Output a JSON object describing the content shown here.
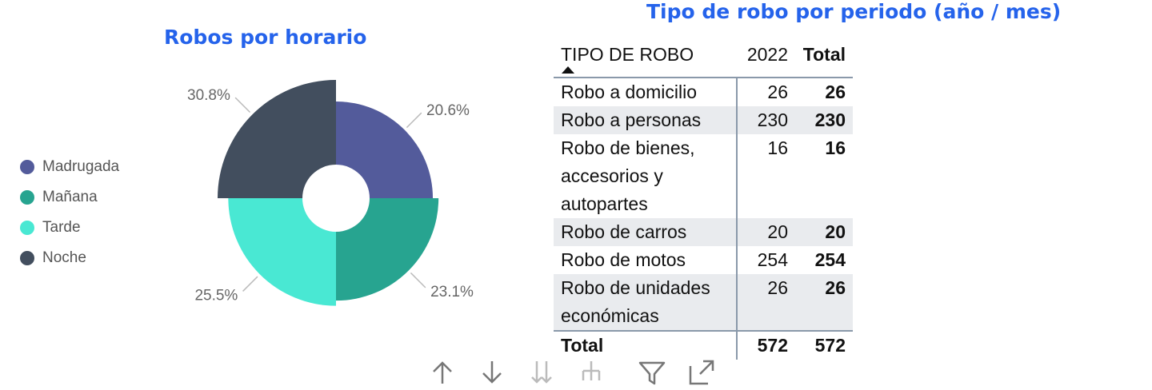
{
  "pie_chart": {
    "title": "Robos por horario"
  },
  "chart_data": [
    {
      "type": "pie",
      "title": "Robos por horario",
      "categories": [
        "Madrugada",
        "Mañana",
        "Tarde",
        "Noche"
      ],
      "values": [
        20.6,
        23.1,
        25.5,
        30.8
      ],
      "labels": [
        "20.6%",
        "23.1%",
        "25.5%",
        "30.8%"
      ],
      "colors": [
        "#535b9b",
        "#27a490",
        "#49e8d3",
        "#424e5e"
      ],
      "legend_position": "left",
      "style": "rose-donut"
    }
  ],
  "table": {
    "title": "Tipo de robo por periodo (año / mes)",
    "headers": {
      "type": "TIPO DE ROBO",
      "year": "2022",
      "total": "Total"
    },
    "rows": [
      {
        "type": "Robo a domicilio",
        "year": "26",
        "total": "26"
      },
      {
        "type": "Robo a personas",
        "year": "230",
        "total": "230"
      },
      {
        "type": "Robo de bienes, accesorios y autopartes",
        "year": "16",
        "total": "16"
      },
      {
        "type": "Robo de carros",
        "year": "20",
        "total": "20"
      },
      {
        "type": "Robo de motos",
        "year": "254",
        "total": "254"
      },
      {
        "type": "Robo de unidades económicas",
        "year": "26",
        "total": "26"
      }
    ],
    "footer": {
      "type": "Total",
      "year": "572",
      "total": "572"
    }
  },
  "toolbar": {
    "icons": [
      "arrow-up-icon",
      "arrow-down-icon",
      "double-arrow-down-icon",
      "expand-hierarchy-icon",
      "filter-icon",
      "focus-mode-icon"
    ]
  }
}
